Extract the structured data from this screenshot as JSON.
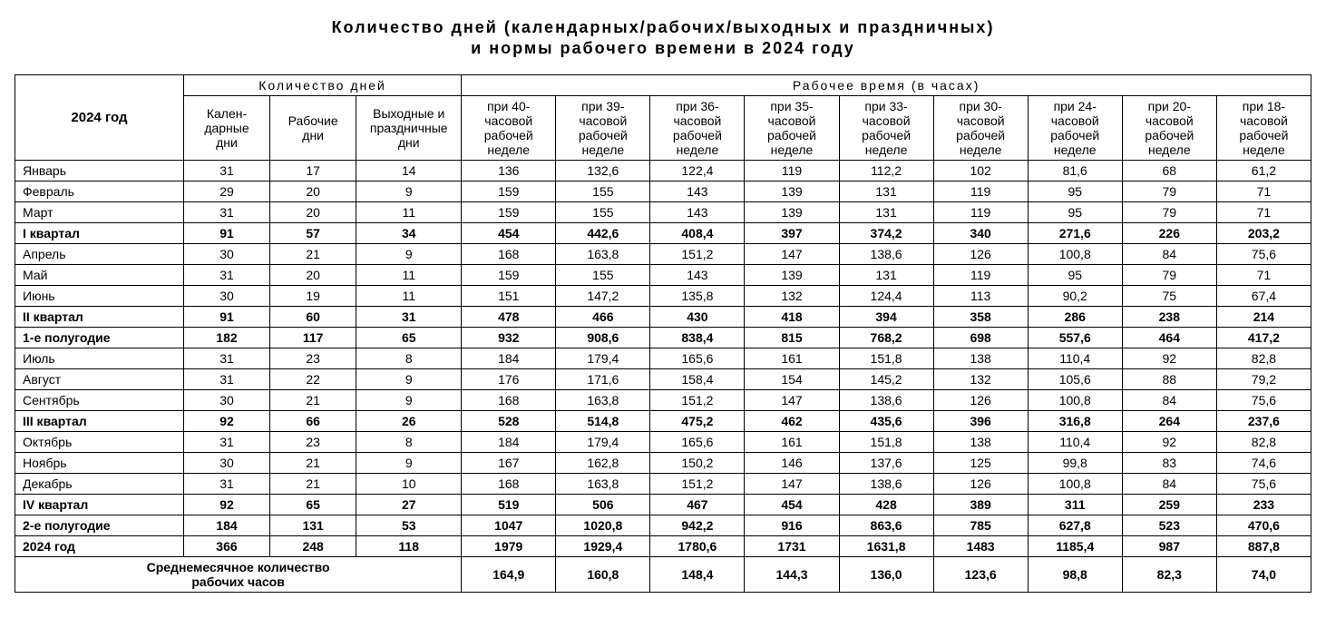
{
  "title_line1": "Количество дней (календарных/рабочих/выходных и праздничных)",
  "title_line2": "и нормы рабочего времени в 2024 году",
  "header": {
    "year": "2024 год",
    "days_group": "Количество дней",
    "hours_group": "Рабочее время (в часах)",
    "days_cols": [
      "Кален-\nдарные\nдни",
      "Рабочие\nдни",
      "Выходные и\nпраздничные\nдни"
    ],
    "hour_cols": [
      "при 40-\nчасовой\nрабочей\nнеделе",
      "при 39-\nчасовой\nрабочей\nнеделе",
      "при 36-\nчасовой\nрабочей\nнеделе",
      "при 35-\nчасовой\nрабочей\nнеделе",
      "при 33-\nчасовой\nрабочей\nнеделе",
      "при 30-\nчасовой\nрабочей\nнеделе",
      "при 24-\nчасовой\nрабочей\nнеделе",
      "при 20-\nчасовой\nрабочей\nнеделе",
      "при 18-\nчасовой\nрабочей\nнеделе"
    ]
  },
  "rows": [
    {
      "label": "Январь",
      "bold": false,
      "cells": [
        "31",
        "17",
        "14",
        "136",
        "132,6",
        "122,4",
        "119",
        "112,2",
        "102",
        "81,6",
        "68",
        "61,2"
      ]
    },
    {
      "label": "Февраль",
      "bold": false,
      "cells": [
        "29",
        "20",
        "9",
        "159",
        "155",
        "143",
        "139",
        "131",
        "119",
        "95",
        "79",
        "71"
      ]
    },
    {
      "label": "Март",
      "bold": false,
      "cells": [
        "31",
        "20",
        "11",
        "159",
        "155",
        "143",
        "139",
        "131",
        "119",
        "95",
        "79",
        "71"
      ]
    },
    {
      "label": "I квартал",
      "bold": true,
      "cells": [
        "91",
        "57",
        "34",
        "454",
        "442,6",
        "408,4",
        "397",
        "374,2",
        "340",
        "271,6",
        "226",
        "203,2"
      ]
    },
    {
      "label": "Апрель",
      "bold": false,
      "cells": [
        "30",
        "21",
        "9",
        "168",
        "163,8",
        "151,2",
        "147",
        "138,6",
        "126",
        "100,8",
        "84",
        "75,6"
      ]
    },
    {
      "label": "Май",
      "bold": false,
      "cells": [
        "31",
        "20",
        "11",
        "159",
        "155",
        "143",
        "139",
        "131",
        "119",
        "95",
        "79",
        "71"
      ]
    },
    {
      "label": "Июнь",
      "bold": false,
      "cells": [
        "30",
        "19",
        "11",
        "151",
        "147,2",
        "135,8",
        "132",
        "124,4",
        "113",
        "90,2",
        "75",
        "67,4"
      ]
    },
    {
      "label": "II квартал",
      "bold": true,
      "cells": [
        "91",
        "60",
        "31",
        "478",
        "466",
        "430",
        "418",
        "394",
        "358",
        "286",
        "238",
        "214"
      ]
    },
    {
      "label": "1-е полугодие",
      "bold": true,
      "cells": [
        "182",
        "117",
        "65",
        "932",
        "908,6",
        "838,4",
        "815",
        "768,2",
        "698",
        "557,6",
        "464",
        "417,2"
      ]
    },
    {
      "label": "Июль",
      "bold": false,
      "cells": [
        "31",
        "23",
        "8",
        "184",
        "179,4",
        "165,6",
        "161",
        "151,8",
        "138",
        "110,4",
        "92",
        "82,8"
      ]
    },
    {
      "label": "Август",
      "bold": false,
      "cells": [
        "31",
        "22",
        "9",
        "176",
        "171,6",
        "158,4",
        "154",
        "145,2",
        "132",
        "105,6",
        "88",
        "79,2"
      ]
    },
    {
      "label": "Сентябрь",
      "bold": false,
      "cells": [
        "30",
        "21",
        "9",
        "168",
        "163,8",
        "151,2",
        "147",
        "138,6",
        "126",
        "100,8",
        "84",
        "75,6"
      ]
    },
    {
      "label": "III квартал",
      "bold": true,
      "cells": [
        "92",
        "66",
        "26",
        "528",
        "514,8",
        "475,2",
        "462",
        "435,6",
        "396",
        "316,8",
        "264",
        "237,6"
      ]
    },
    {
      "label": "Октябрь",
      "bold": false,
      "cells": [
        "31",
        "23",
        "8",
        "184",
        "179,4",
        "165,6",
        "161",
        "151,8",
        "138",
        "110,4",
        "92",
        "82,8"
      ]
    },
    {
      "label": "Ноябрь",
      "bold": false,
      "cells": [
        "30",
        "21",
        "9",
        "167",
        "162,8",
        "150,2",
        "146",
        "137,6",
        "125",
        "99,8",
        "83",
        "74,6"
      ]
    },
    {
      "label": "Декабрь",
      "bold": false,
      "cells": [
        "31",
        "21",
        "10",
        "168",
        "163,8",
        "151,2",
        "147",
        "138,6",
        "126",
        "100,8",
        "84",
        "75,6"
      ]
    },
    {
      "label": "IV квартал",
      "bold": true,
      "cells": [
        "92",
        "65",
        "27",
        "519",
        "506",
        "467",
        "454",
        "428",
        "389",
        "311",
        "259",
        "233"
      ]
    },
    {
      "label": "2-е полугодие",
      "bold": true,
      "cells": [
        "184",
        "131",
        "53",
        "1047",
        "1020,8",
        "942,2",
        "916",
        "863,6",
        "785",
        "627,8",
        "523",
        "470,6"
      ]
    },
    {
      "label": "2024 год",
      "bold": true,
      "cells": [
        "366",
        "248",
        "118",
        "1979",
        "1929,4",
        "1780,6",
        "1731",
        "1631,8",
        "1483",
        "1185,4",
        "987",
        "887,8"
      ]
    }
  ],
  "avg_row": {
    "label": "Среднемесячное количество\nрабочих часов",
    "cells": [
      "164,9",
      "160,8",
      "148,4",
      "144,3",
      "136,0",
      "123,6",
      "98,8",
      "82,3",
      "74,0"
    ]
  }
}
